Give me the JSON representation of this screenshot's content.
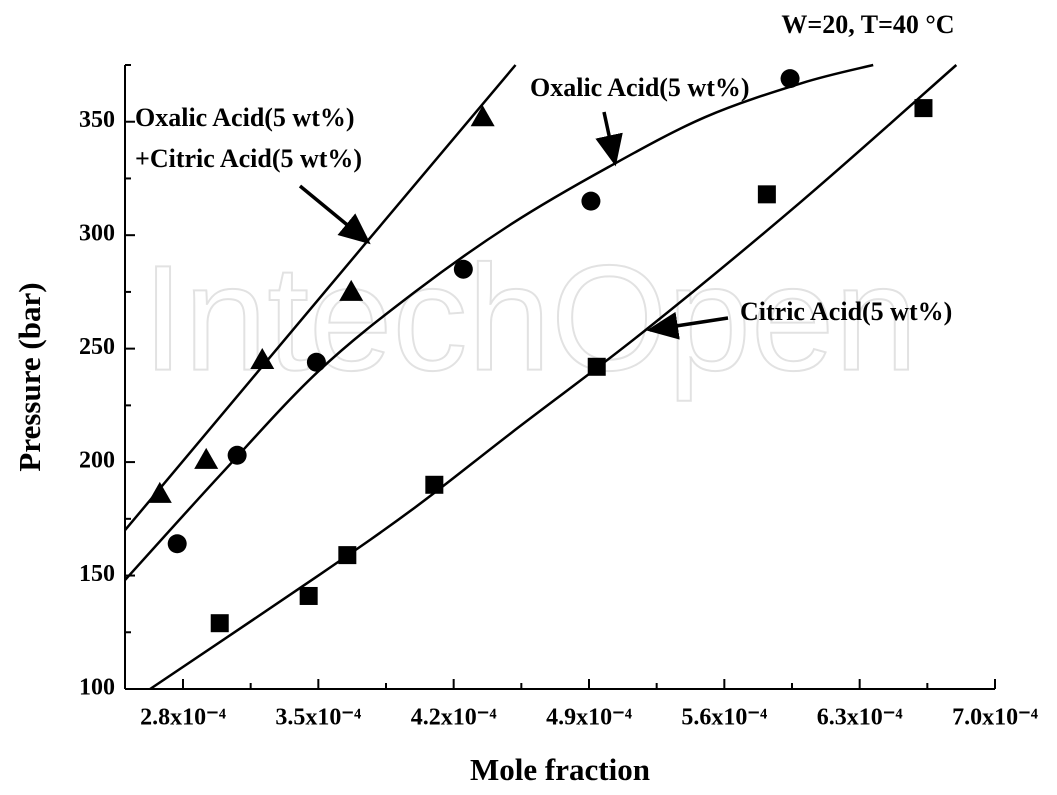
{
  "chart_data": {
    "type": "scatter",
    "title": "W=20, T=40 °C",
    "xlabel": "Mole fraction",
    "ylabel": "Pressure (bar)",
    "watermark": "IntechOpen",
    "xlim": [
      0.00025,
      0.0007
    ],
    "ylim": [
      100,
      375
    ],
    "xticks": [
      {
        "value": 0.00028,
        "label": "2.8x10⁻⁴"
      },
      {
        "value": 0.00035,
        "label": "3.5x10⁻⁴"
      },
      {
        "value": 0.00042,
        "label": "4.2x10⁻⁴"
      },
      {
        "value": 0.00049,
        "label": "4.9x10⁻⁴"
      },
      {
        "value": 0.00056,
        "label": "5.6x10⁻⁴"
      },
      {
        "value": 0.00063,
        "label": "6.3x10⁻⁴"
      },
      {
        "value": 0.0007,
        "label": "7.0x10⁻⁴"
      }
    ],
    "xminorticks": [
      0.000315,
      0.000385,
      0.000455,
      0.000525,
      0.000595,
      0.000665
    ],
    "yticks": [
      100,
      150,
      200,
      250,
      300,
      350
    ],
    "yminorticks": [
      125,
      175,
      225,
      275,
      325,
      375
    ],
    "annotations": [
      "Oxalic Acid(5 wt%)",
      "+Citric Acid(5 wt%)",
      "Oxalic Acid(5 wt%)",
      "Citric Acid(5 wt%)"
    ],
    "series": [
      {
        "marker": "triangle",
        "color": "#000000",
        "x": [
          0.000268,
          0.000292,
          0.000321,
          0.000367,
          0.000435
        ],
        "values": [
          186,
          201,
          245,
          275,
          352
        ],
        "fit_x": [
          0.00025,
          0.000375,
          0.000452
        ],
        "fit_y": [
          170,
          297,
          375
        ]
      },
      {
        "marker": "circle",
        "color": "#000000",
        "x": [
          0.000277,
          0.000308,
          0.000349,
          0.000425,
          0.000491,
          0.000594
        ],
        "values": [
          164,
          203,
          244,
          285,
          315,
          369
        ],
        "fit_x": [
          0.00025,
          0.0003,
          0.00035,
          0.0004,
          0.00045,
          0.0005,
          0.00055,
          0.0006,
          0.000637
        ],
        "fit_y": [
          148,
          195,
          240,
          275,
          305,
          330,
          352,
          367,
          375
        ]
      },
      {
        "marker": "square",
        "color": "#000000",
        "x": [
          0.000299,
          0.000345,
          0.000365,
          0.00041,
          0.000494,
          0.000582,
          0.000663
        ],
        "values": [
          129,
          141,
          159,
          190,
          242,
          318,
          356
        ],
        "fit_x": [
          0.000263,
          0.00035,
          0.0004,
          0.00045,
          0.000519,
          0.0006,
          0.00068
        ],
        "fit_y": [
          100,
          150,
          180,
          213,
          258,
          315,
          375
        ]
      }
    ]
  }
}
